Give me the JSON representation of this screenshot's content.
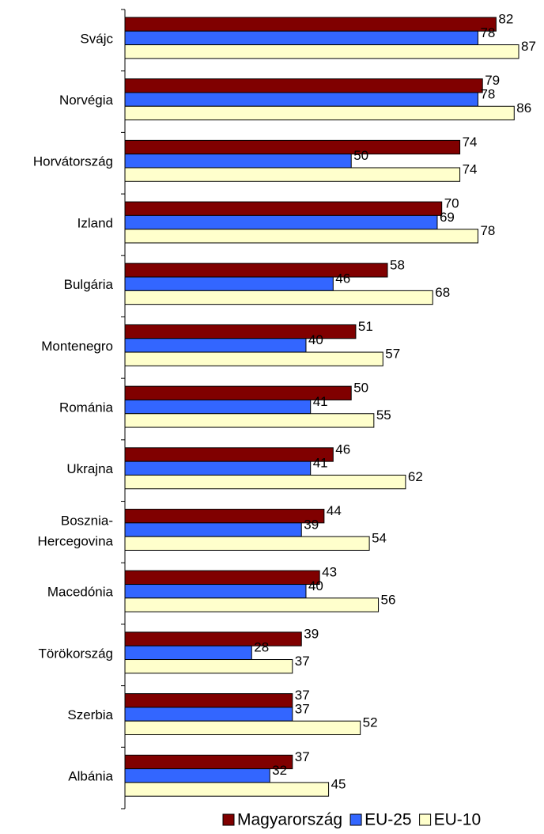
{
  "chart_data": {
    "type": "bar",
    "orientation": "horizontal",
    "categories": [
      "Svájc",
      "Norvégia",
      "Horvátország",
      "Izland",
      "Bulgária",
      "Montenegro",
      "Románia",
      "Ukrajna",
      "Bosznia-Hercegovina",
      "Macedónia",
      "Törökország",
      "Szerbia",
      "Albánia"
    ],
    "series": [
      {
        "name": "Magyarország",
        "color": "#800000",
        "values": [
          82,
          79,
          74,
          70,
          58,
          51,
          50,
          46,
          44,
          43,
          39,
          37,
          37
        ]
      },
      {
        "name": "EU-25",
        "color": "#3366ff",
        "values": [
          78,
          78,
          50,
          69,
          46,
          40,
          41,
          41,
          39,
          40,
          28,
          37,
          32
        ]
      },
      {
        "name": "EU-10",
        "color": "#ffffcc",
        "values": [
          87,
          86,
          74,
          78,
          68,
          57,
          55,
          62,
          54,
          56,
          37,
          52,
          45
        ]
      }
    ],
    "legend": "bottom"
  }
}
